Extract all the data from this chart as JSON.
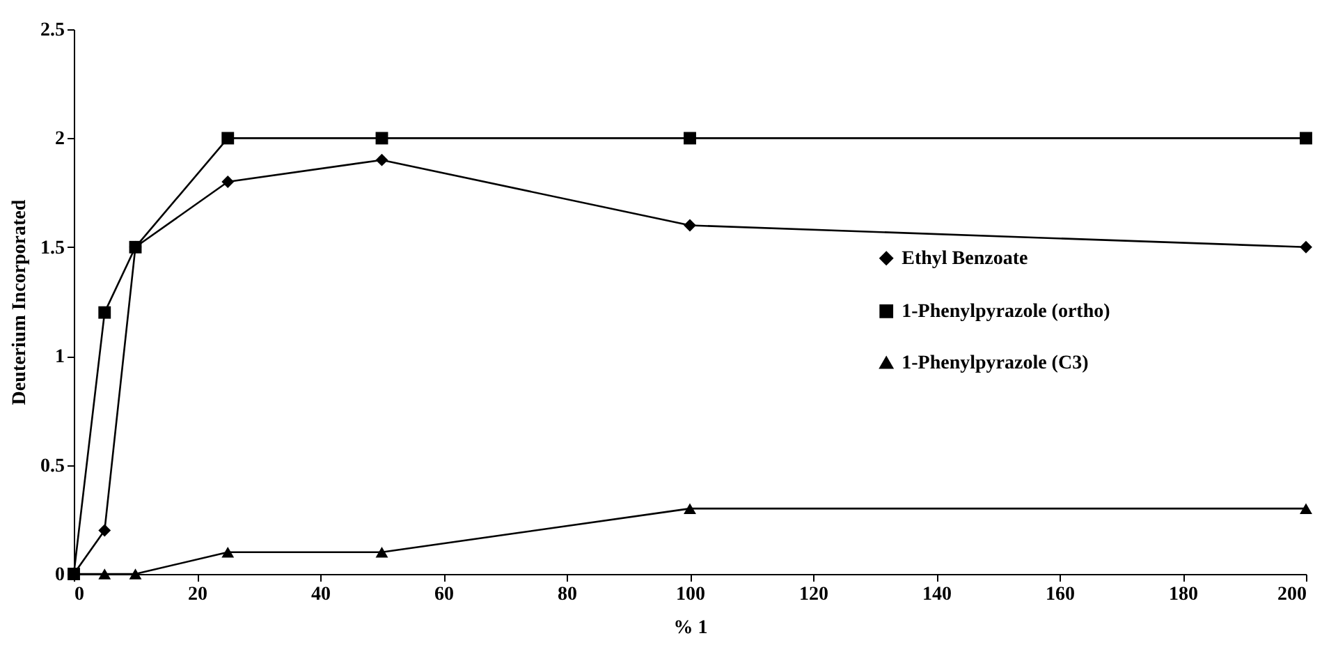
{
  "chart_data": {
    "type": "line",
    "xlabel": "% 1",
    "ylabel": "Deuterium Incorporated",
    "x": [
      0,
      5,
      10,
      25,
      50,
      100,
      200
    ],
    "series": [
      {
        "name": "Ethyl Benzoate",
        "color": "#000000",
        "marker": "diamond",
        "values": [
          0,
          0.2,
          1.5,
          1.8,
          1.9,
          1.6,
          1.5
        ]
      },
      {
        "name": "1-Phenylpyrazole (ortho)",
        "color": "#000000",
        "marker": "square",
        "values": [
          0,
          1.2,
          1.5,
          2,
          2,
          2,
          2
        ]
      },
      {
        "name": "1-Phenylpyrazole (C3)",
        "color": "#000000",
        "marker": "triangle",
        "values": [
          0,
          0,
          0,
          0.1,
          0.1,
          0.3,
          0.3
        ]
      }
    ],
    "xlim": [
      0,
      200
    ],
    "xticks": [
      0,
      20,
      40,
      60,
      80,
      100,
      120,
      140,
      160,
      180,
      200
    ],
    "ylim": [
      0,
      2.5
    ],
    "yticks": [
      0,
      0.5,
      1,
      1.5,
      2,
      2.5
    ],
    "grid": false,
    "legend": "right",
    "line_style": "solid"
  }
}
